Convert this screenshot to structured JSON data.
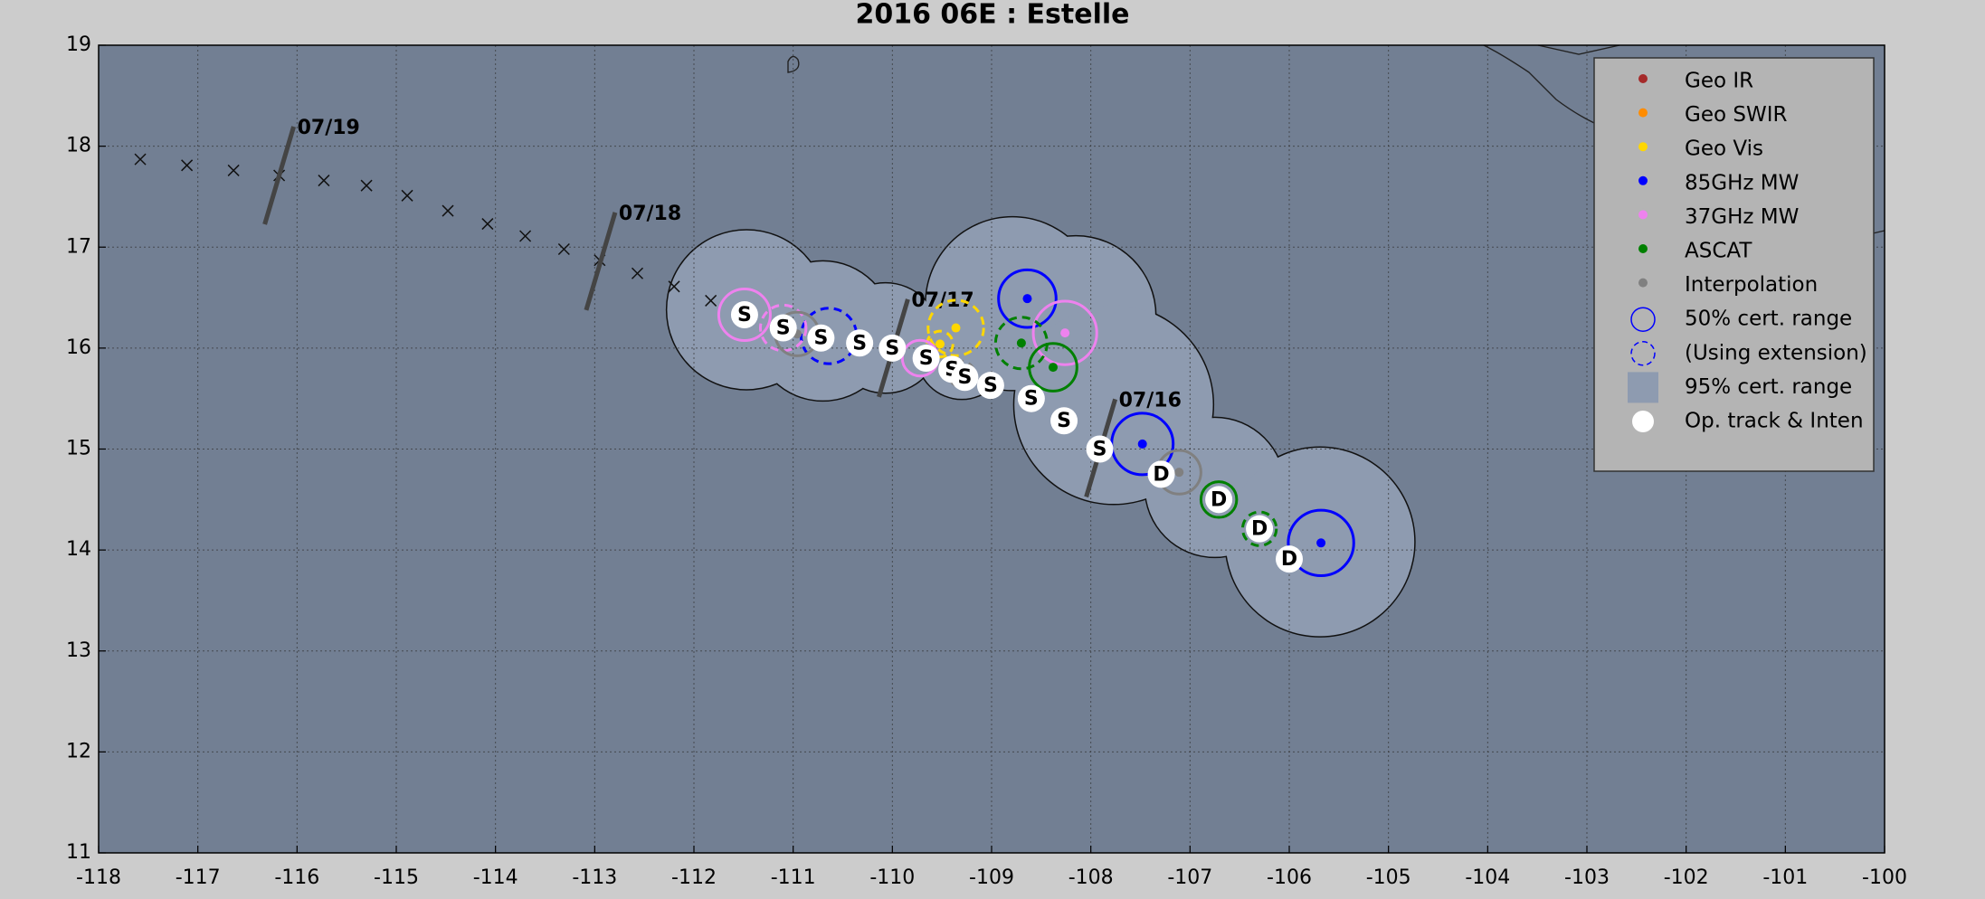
{
  "chart_data": {
    "type": "scatter",
    "title": "2016  06E :  Estelle",
    "xlim": [
      -118,
      -100
    ],
    "xticks": [
      -118,
      -117,
      -116,
      -115,
      -114,
      -113,
      -112,
      -111,
      -110,
      -109,
      -108,
      -107,
      -106,
      -105,
      -104,
      -103,
      -102,
      -101,
      -100
    ],
    "ylim": [
      11,
      19
    ],
    "yticks": [
      11,
      12,
      13,
      14,
      15,
      16,
      17,
      18,
      19
    ],
    "grid": true,
    "legend_position": "upper right",
    "series": [
      {
        "name": "Geo IR",
        "color": "#a52a2a",
        "fixes": []
      },
      {
        "name": "Geo SWIR",
        "color": "#ff8c00",
        "fixes": []
      },
      {
        "name": "Geo Vis",
        "color": "#ffd700",
        "fixes": [
          {
            "x": -109.36,
            "y": 16.2,
            "radius": 0.28,
            "extension": true
          },
          {
            "x": -109.52,
            "y": 16.04,
            "radius": 0.13,
            "extension": true
          }
        ]
      },
      {
        "name": "85GHz MW",
        "color": "#0000ff",
        "fixes": [
          {
            "x": -108.64,
            "y": 16.49,
            "radius": 0.29,
            "extension": false
          },
          {
            "x": -107.48,
            "y": 15.05,
            "radius": 0.31,
            "extension": false
          },
          {
            "x": -105.68,
            "y": 14.07,
            "radius": 0.33,
            "extension": false
          },
          {
            "x": -110.64,
            "y": 16.12,
            "radius": 0.28,
            "extension": true
          }
        ]
      },
      {
        "name": "37GHz MW",
        "color": "#ee82ee",
        "fixes": [
          {
            "x": -111.49,
            "y": 16.33,
            "radius": 0.26,
            "extension": false
          },
          {
            "x": -111.1,
            "y": 16.2,
            "radius": 0.23,
            "extension": true
          },
          {
            "x": -108.26,
            "y": 16.15,
            "radius": 0.32,
            "extension": false
          },
          {
            "x": -109.72,
            "y": 15.9,
            "radius": 0.18,
            "extension": false
          }
        ]
      },
      {
        "name": "ASCAT",
        "color": "#008000",
        "fixes": [
          {
            "x": -108.7,
            "y": 16.05,
            "radius": 0.26,
            "extension": true
          },
          {
            "x": -108.38,
            "y": 15.81,
            "radius": 0.24,
            "extension": false
          },
          {
            "x": -106.71,
            "y": 14.5,
            "radius": 0.18,
            "extension": false
          },
          {
            "x": -106.3,
            "y": 14.21,
            "radius": 0.17,
            "extension": true
          }
        ]
      },
      {
        "name": "Interpolation",
        "color": "#808080",
        "fixes": [
          {
            "x": -110.96,
            "y": 16.14,
            "radius": 0.22,
            "extension": false
          },
          {
            "x": -107.11,
            "y": 14.77,
            "radius": 0.22,
            "extension": false
          },
          {
            "x": -109.3,
            "y": 15.74,
            "radius": 0.13,
            "extension": true
          }
        ]
      }
    ],
    "range_50": {
      "name": "50% cert. range"
    },
    "extension": {
      "name": "(Using extension)"
    },
    "range_95": {
      "name": "95% cert. range",
      "color": "#8e9bb0",
      "areas": [
        {
          "x": -111.47,
          "y": 16.38,
          "radius": 0.8
        },
        {
          "x": -110.7,
          "y": 16.17,
          "radius": 0.7
        },
        {
          "x": -110.07,
          "y": 16.1,
          "radius": 0.55
        },
        {
          "x": -109.3,
          "y": 15.94,
          "radius": 0.45
        },
        {
          "x": -108.79,
          "y": 16.44,
          "radius": 0.87
        },
        {
          "x": -108.15,
          "y": 16.32,
          "radius": 0.8
        },
        {
          "x": -107.77,
          "y": 15.44,
          "radius": 1.0
        },
        {
          "x": -106.75,
          "y": 14.62,
          "radius": 0.7
        },
        {
          "x": -105.69,
          "y": 14.08,
          "radius": 0.95
        }
      ]
    },
    "op_track": {
      "name": "Op. track & Inten",
      "x": [
        -111.49,
        -111.1,
        -110.72,
        -110.33,
        -110.0,
        -109.66,
        -109.4,
        -109.27,
        -109.01,
        -108.6,
        -108.27,
        -107.91,
        -107.29,
        -106.71,
        -106.3,
        -106.0
      ],
      "y": [
        16.33,
        16.2,
        16.1,
        16.05,
        16.0,
        15.9,
        15.79,
        15.71,
        15.63,
        15.5,
        15.28,
        15.0,
        14.75,
        14.5,
        14.21,
        13.91
      ],
      "labels": [
        "S",
        "S",
        "S",
        "S",
        "S",
        "S",
        "S",
        "S",
        "S",
        "S",
        "S",
        "S",
        "D",
        "D",
        "D",
        "D"
      ]
    },
    "track_marks": {
      "x": [
        -117.58,
        -117.11,
        -116.64,
        -116.18,
        -115.73,
        -115.3,
        -114.89,
        -114.48,
        -114.08,
        -113.7,
        -113.31,
        -112.95,
        -112.57,
        -112.2,
        -111.83
      ],
      "y": [
        17.87,
        17.81,
        17.76,
        17.71,
        17.66,
        17.61,
        17.51,
        17.36,
        17.23,
        17.11,
        16.98,
        16.87,
        16.74,
        16.61,
        16.47
      ]
    },
    "dates": [
      {
        "label": "07/19",
        "x": -116.18,
        "y": 17.71
      },
      {
        "label": "07/18",
        "x": -112.94,
        "y": 16.86
      },
      {
        "label": "07/17",
        "x": -109.99,
        "y": 16.0
      },
      {
        "label": "07/16",
        "x": -107.9,
        "y": 15.01
      }
    ]
  }
}
